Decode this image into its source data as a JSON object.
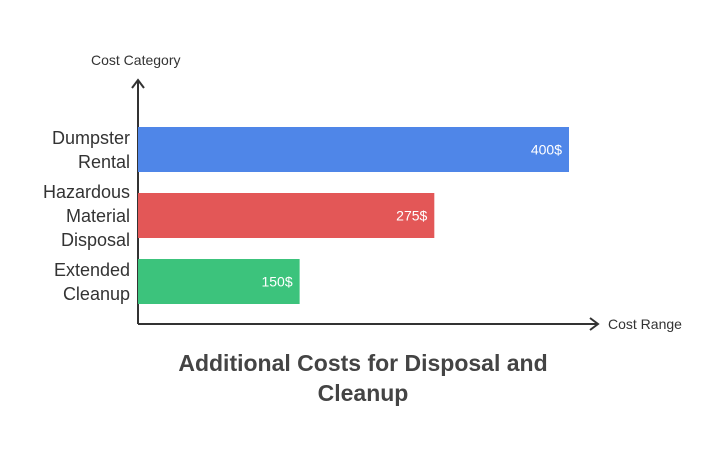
{
  "chart_data": {
    "type": "bar",
    "orientation": "horizontal",
    "title": "Additional Costs for Disposal and Cleanup",
    "y_label": "Cost Category",
    "x_label": "Cost Range",
    "categories": [
      "Dumpster Rental",
      "Hazardous Material Disposal",
      "Extended Cleanup"
    ],
    "values": [
      400,
      275,
      150
    ],
    "value_labels": [
      "400$",
      "275$",
      "150$"
    ],
    "colors": [
      "#4f86e8",
      "#e35757",
      "#3cc37c"
    ]
  }
}
